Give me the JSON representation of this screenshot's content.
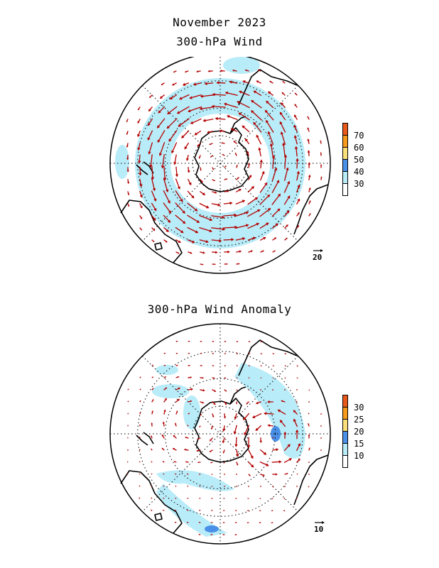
{
  "titles": {
    "month": "November 2023",
    "wind": "300-hPa Wind",
    "anomaly": "300-hPa Wind Anomaly"
  },
  "panels": [
    {
      "name": "wind",
      "colorbar": {
        "labels": [
          "70",
          "60",
          "50",
          "40",
          "30"
        ],
        "colors": [
          "#e8591a",
          "#f59a1c",
          "#fadf7a",
          "#4a90e8",
          "#b8ecf8",
          "#ffffff"
        ]
      },
      "reference_vector": "20",
      "vector_color": "#b30000",
      "jet_fill": "#b8ecf8"
    },
    {
      "name": "anomaly",
      "colorbar": {
        "labels": [
          "30",
          "25",
          "20",
          "15",
          "10"
        ],
        "colors": [
          "#e8591a",
          "#f59a1c",
          "#fadf7a",
          "#4a90e8",
          "#b8ecf8",
          "#ffffff"
        ]
      },
      "reference_vector": "10",
      "vector_color": "#b30000",
      "jet_fill": "#b8ecf8",
      "strong_fill": "#4a90e8"
    }
  ]
}
